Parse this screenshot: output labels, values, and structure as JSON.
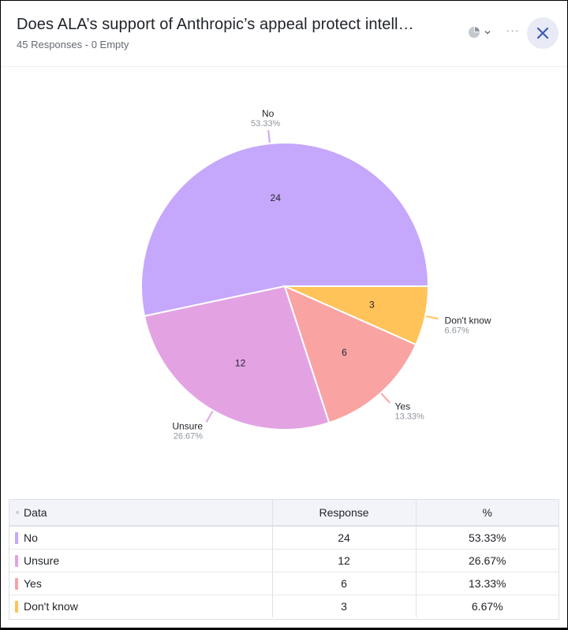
{
  "header": {
    "title": "Does ALA’s support of Anthropic’s appeal protect intell…",
    "responses": "45 Responses",
    "separator": " - ",
    "empty": "0 Empty"
  },
  "icons": {
    "chart_type": "pie-chart-icon",
    "chevron": "chevron-down-icon",
    "more": "more-icon",
    "close": "close-icon"
  },
  "chart_data": {
    "type": "pie",
    "total": 45,
    "slices": [
      {
        "label": "No",
        "value": 24,
        "percent": "53.33%",
        "color": "#c5a8fb"
      },
      {
        "label": "Unsure",
        "value": 12,
        "percent": "26.67%",
        "color": "#e3a3e3"
      },
      {
        "label": "Yes",
        "value": 6,
        "percent": "13.33%",
        "color": "#f9a3a3"
      },
      {
        "label": "Don't know",
        "value": 3,
        "percent": "6.67%",
        "color": "#ffc35a"
      }
    ]
  },
  "table": {
    "headers": {
      "data": "Data",
      "response": "Response",
      "percent": "%"
    },
    "rows": [
      {
        "label": "No",
        "response": "24",
        "percent": "53.33%",
        "color": "#c5a8fb"
      },
      {
        "label": "Unsure",
        "response": "12",
        "percent": "26.67%",
        "color": "#e3a3e3"
      },
      {
        "label": "Yes",
        "response": "6",
        "percent": "13.33%",
        "color": "#f9a3a3"
      },
      {
        "label": "Don't know",
        "response": "3",
        "percent": "6.67%",
        "color": "#ffc35a"
      }
    ]
  }
}
